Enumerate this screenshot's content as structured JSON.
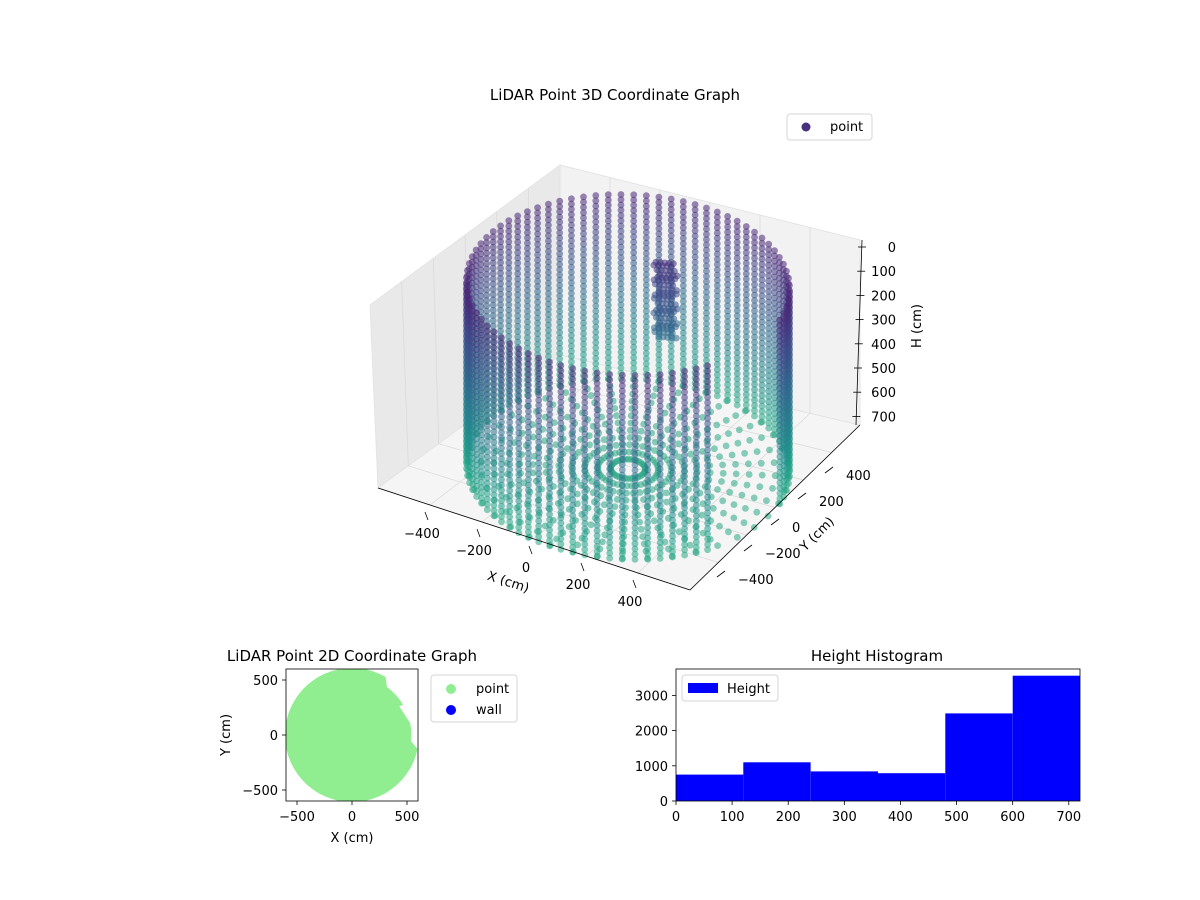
{
  "chart_data": [
    {
      "type": "scatter",
      "projection": "3d",
      "title": "LiDAR Point 3D Coordinate Graph",
      "xlabel": "X (cm)",
      "ylabel": "Y (cm)",
      "zlabel": "H (cm)",
      "xlim": [
        -600,
        600
      ],
      "ylim": [
        -600,
        600
      ],
      "zlim": [
        0,
        720
      ],
      "z_inverted": true,
      "xticks": [
        "−400",
        "−200",
        "0",
        "200",
        "400"
      ],
      "yticks": [
        "−400",
        "−200",
        "0",
        "200",
        "400"
      ],
      "zticks": [
        "0",
        "100",
        "200",
        "300",
        "400",
        "500",
        "600",
        "700"
      ],
      "legend": {
        "position": "upper-right",
        "entries": [
          "point"
        ]
      },
      "colormap": "viridis",
      "series": [
        {
          "name": "point",
          "marker_color": "#46327e"
        }
      ],
      "grid": true
    },
    {
      "type": "scatter",
      "title": "LiDAR Point 2D Coordinate Graph",
      "xlabel": "X (cm)",
      "ylabel": "Y (cm)",
      "xlim": [
        -600,
        600
      ],
      "ylim": [
        -600,
        600
      ],
      "xticks": [
        "−500",
        "0",
        "500"
      ],
      "yticks": [
        "500",
        "0",
        "−500"
      ],
      "legend": {
        "position": "outside-right",
        "entries": [
          "point",
          "wall"
        ]
      },
      "series": [
        {
          "name": "point",
          "color": "#90ee90"
        },
        {
          "name": "wall",
          "color": "#0000ff"
        }
      ]
    },
    {
      "type": "bar",
      "subtype": "histogram",
      "title": "Height Histogram",
      "xlabel": "",
      "ylabel": "",
      "bin_edges": [
        0,
        120,
        240,
        360,
        480,
        600,
        720
      ],
      "values": [
        750,
        1100,
        840,
        790,
        2490,
        3560
      ],
      "xlim": [
        0,
        720
      ],
      "ylim": [
        0,
        3750
      ],
      "xticks": [
        "0",
        "100",
        "200",
        "300",
        "400",
        "500",
        "600",
        "700"
      ],
      "yticks": [
        "0",
        "1000",
        "2000",
        "3000"
      ],
      "legend": {
        "position": "upper-left",
        "entries": [
          "Height"
        ]
      },
      "series": [
        {
          "name": "Height",
          "color": "#0000ff"
        }
      ]
    }
  ]
}
